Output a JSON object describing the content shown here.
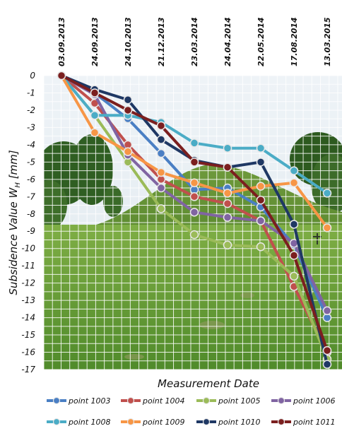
{
  "chart_data": {
    "type": "line",
    "title": "",
    "xlabel": "Measurement Date",
    "ylabel_main": "Subsidence Value W",
    "ylabel_sub": "H",
    "ylabel_unit": "[mm]",
    "x": [
      "03.09.2013",
      "24.09.2013",
      "24.10.2013",
      "21.12.2013",
      "23.03.2014",
      "24.04.2014",
      "22.05.2014",
      "17.08.2014",
      "13.03.2015"
    ],
    "ylim": [
      -17,
      0
    ],
    "yticks": [
      "0",
      "-1",
      "-2",
      "-3",
      "-4",
      "-5",
      "-6",
      "-7",
      "-8",
      "-9",
      "-10",
      "-11",
      "-12",
      "-13",
      "-14",
      "-15",
      "-16",
      "-17"
    ],
    "grid": true,
    "background": "photo of grassy mound with trees",
    "legend_position": "bottom",
    "series": [
      {
        "name": "point 1003",
        "color": "#4a7fc4",
        "values": [
          0,
          -1.0,
          -2.5,
          -4.5,
          -6.6,
          -6.5,
          -7.6,
          -9.8,
          -14.0
        ]
      },
      {
        "name": "point 1004",
        "color": "#c0504d",
        "values": [
          0,
          -1.6,
          -4.0,
          -6.0,
          -7.0,
          -7.4,
          -8.4,
          -12.2,
          -16.0
        ]
      },
      {
        "name": "point 1005",
        "color": "#9bbb59",
        "values": [
          0,
          -2.3,
          -5.0,
          -7.7,
          -9.2,
          -9.8,
          -9.9,
          -11.6,
          -16.4
        ]
      },
      {
        "name": "point 1006",
        "color": "#8064a2",
        "values": [
          0,
          -1.1,
          -4.6,
          -6.5,
          -7.9,
          -8.2,
          -8.4,
          -9.7,
          -13.6
        ]
      },
      {
        "name": "point 1008",
        "color": "#4bacc6",
        "values": [
          0,
          -2.3,
          -2.3,
          -2.7,
          -3.9,
          -4.2,
          -4.2,
          -5.5,
          -6.8
        ]
      },
      {
        "name": "point 1009",
        "color": "#f79646",
        "values": [
          0,
          -3.3,
          -4.4,
          -5.6,
          -6.2,
          -6.8,
          -6.4,
          -6.2,
          -8.8
        ]
      },
      {
        "name": "point 1010",
        "color": "#1f3864",
        "values": [
          0,
          -0.8,
          -1.4,
          -3.7,
          -4.9,
          -5.3,
          -5.0,
          -8.6,
          -16.7
        ]
      },
      {
        "name": "point 1011",
        "color": "#7b1f1f",
        "values": [
          0,
          -1.0,
          -2.0,
          -2.9,
          -5.0,
          -5.3,
          -7.2,
          -10.4,
          -15.9
        ]
      }
    ]
  }
}
